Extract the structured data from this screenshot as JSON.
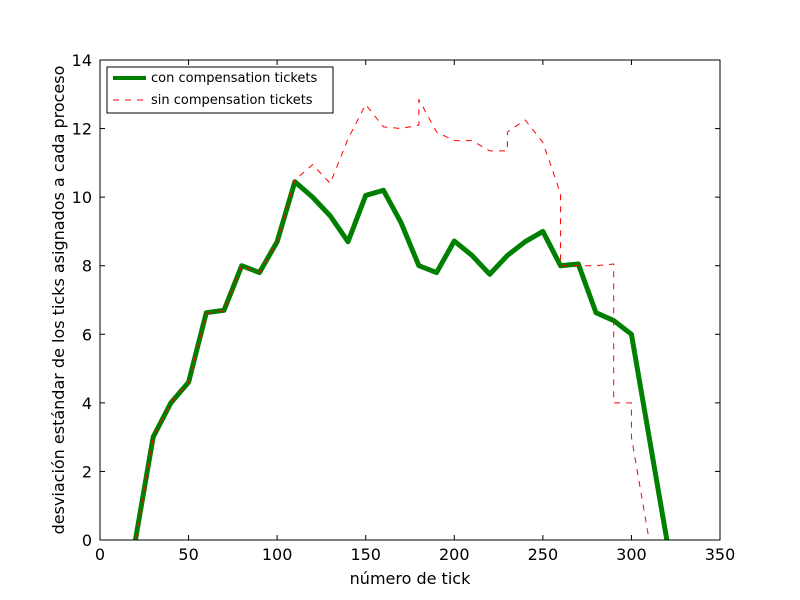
{
  "chart_data": {
    "type": "line",
    "title": "",
    "xlabel": "número de tick",
    "ylabel": "desviación estándar de los ticks asignados a cada proceso",
    "xlim": [
      0,
      350
    ],
    "ylim": [
      0,
      14
    ],
    "xticks": [
      0,
      50,
      100,
      150,
      200,
      250,
      300,
      350
    ],
    "yticks": [
      0,
      2,
      4,
      6,
      8,
      10,
      12,
      14
    ],
    "grid": false,
    "legend_position": "top-left",
    "series": [
      {
        "name": "con compensation tickets",
        "color": "#008000",
        "style": "solid-thick",
        "points": [
          [
            20,
            0
          ],
          [
            30,
            3.0
          ],
          [
            40,
            4.0
          ],
          [
            50,
            4.6
          ],
          [
            60,
            6.63
          ],
          [
            70,
            6.7
          ],
          [
            80,
            8.0
          ],
          [
            90,
            7.8
          ],
          [
            100,
            8.7
          ],
          [
            110,
            10.45
          ],
          [
            120,
            10.0
          ],
          [
            130,
            9.45
          ],
          [
            140,
            8.7
          ],
          [
            150,
            10.05
          ],
          [
            160,
            10.2
          ],
          [
            170,
            9.25
          ],
          [
            180,
            8.0
          ],
          [
            190,
            7.8
          ],
          [
            200,
            8.72
          ],
          [
            210,
            8.3
          ],
          [
            220,
            7.75
          ],
          [
            230,
            8.3
          ],
          [
            240,
            8.7
          ],
          [
            250,
            9.0
          ],
          [
            260,
            8.0
          ],
          [
            270,
            8.05
          ],
          [
            280,
            6.63
          ],
          [
            290,
            6.4
          ],
          [
            300,
            6.0
          ],
          [
            320,
            0
          ]
        ]
      },
      {
        "name": "sin compensation tickets",
        "color": "#ff0000",
        "style": "dashed",
        "points": [
          [
            20,
            0
          ],
          [
            30,
            3.0
          ],
          [
            40,
            4.0
          ],
          [
            50,
            4.6
          ],
          [
            60,
            6.6
          ],
          [
            70,
            6.7
          ],
          [
            80,
            8.0
          ],
          [
            90,
            7.8
          ],
          [
            100,
            8.7
          ],
          [
            110,
            10.5
          ],
          [
            120,
            10.95
          ],
          [
            130,
            10.4
          ],
          [
            140,
            11.7
          ],
          [
            150,
            12.7
          ],
          [
            160,
            12.05
          ],
          [
            170,
            12.0
          ],
          [
            180,
            12.1
          ],
          [
            180,
            12.85
          ],
          [
            190,
            11.9
          ],
          [
            200,
            11.65
          ],
          [
            210,
            11.65
          ],
          [
            220,
            11.35
          ],
          [
            230,
            11.35
          ],
          [
            230,
            11.9
          ],
          [
            240,
            12.25
          ],
          [
            250,
            11.6
          ],
          [
            260,
            10.1
          ],
          [
            260,
            8.0
          ],
          [
            270,
            8.0
          ],
          [
            280,
            8.0
          ],
          [
            290,
            8.05
          ],
          [
            290,
            4.0
          ],
          [
            300,
            4.0
          ],
          [
            300,
            3.0
          ],
          [
            310,
            0
          ],
          [
            320,
            0
          ]
        ]
      }
    ]
  }
}
